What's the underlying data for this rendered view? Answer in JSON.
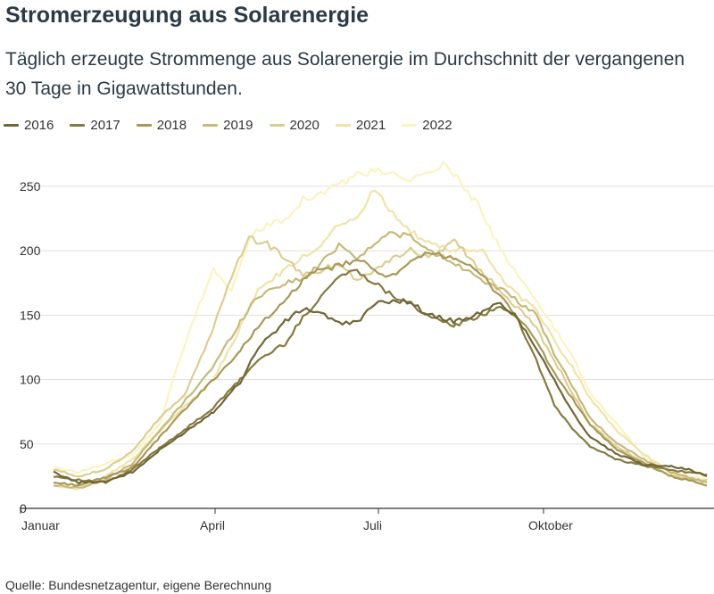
{
  "title": "Stromerzeugung aus Solarenergie",
  "subtitle": "Täglich erzeugte Strommenge aus Solarenergie im Durchschnitt der vergangenen 30 Tage in Gigawattstunden.",
  "source": "Quelle: Bundesnetzagentur, eigene Berechnung",
  "colors": {
    "2016": "#726636",
    "2017": "#857a41",
    "2018": "#a89958",
    "2019": "#c8b87a",
    "2020": "#ddcd93",
    "2021": "#efe3aa",
    "2022": "#fbf3c1"
  },
  "chart_data": {
    "type": "line",
    "title": "Stromerzeugung aus Solarenergie",
    "xlabel": "",
    "ylabel": "",
    "x_unit": "Tag des Jahres",
    "ylim": [
      0,
      270
    ],
    "yticks": [
      0,
      50,
      100,
      150,
      200,
      250
    ],
    "xticks": [
      {
        "day": 1,
        "label": "Januar"
      },
      {
        "day": 91,
        "label": "April"
      },
      {
        "day": 182,
        "label": "Juli"
      },
      {
        "day": 274,
        "label": "Oktober"
      }
    ],
    "grid": true,
    "legend_position": "top",
    "series": [
      {
        "name": "2016",
        "points": [
          [
            1,
            28
          ],
          [
            15,
            20
          ],
          [
            30,
            21
          ],
          [
            45,
            28
          ],
          [
            60,
            45
          ],
          [
            75,
            60
          ],
          [
            90,
            75
          ],
          [
            105,
            98
          ],
          [
            115,
            125
          ],
          [
            130,
            145
          ],
          [
            140,
            155
          ],
          [
            150,
            152
          ],
          [
            160,
            143
          ],
          [
            170,
            145
          ],
          [
            180,
            158
          ],
          [
            190,
            162
          ],
          [
            200,
            160
          ],
          [
            210,
            150
          ],
          [
            225,
            145
          ],
          [
            240,
            152
          ],
          [
            250,
            160
          ],
          [
            258,
            150
          ],
          [
            270,
            125
          ],
          [
            280,
            100
          ],
          [
            290,
            75
          ],
          [
            300,
            55
          ],
          [
            315,
            42
          ],
          [
            330,
            34
          ],
          [
            345,
            33
          ],
          [
            355,
            30
          ],
          [
            365,
            25
          ]
        ]
      },
      {
        "name": "2017",
        "points": [
          [
            1,
            25
          ],
          [
            15,
            22
          ],
          [
            30,
            20
          ],
          [
            45,
            30
          ],
          [
            60,
            47
          ],
          [
            75,
            62
          ],
          [
            90,
            78
          ],
          [
            105,
            100
          ],
          [
            115,
            115
          ],
          [
            130,
            128
          ],
          [
            140,
            148
          ],
          [
            150,
            165
          ],
          [
            160,
            180
          ],
          [
            170,
            185
          ],
          [
            180,
            175
          ],
          [
            190,
            165
          ],
          [
            200,
            160
          ],
          [
            210,
            148
          ],
          [
            225,
            142
          ],
          [
            240,
            150
          ],
          [
            250,
            158
          ],
          [
            260,
            145
          ],
          [
            270,
            115
          ],
          [
            280,
            80
          ],
          [
            290,
            62
          ],
          [
            300,
            48
          ],
          [
            315,
            38
          ],
          [
            330,
            33
          ],
          [
            345,
            30
          ],
          [
            360,
            27
          ],
          [
            365,
            26
          ]
        ]
      },
      {
        "name": "2018",
        "points": [
          [
            1,
            20
          ],
          [
            15,
            18
          ],
          [
            30,
            24
          ],
          [
            45,
            32
          ],
          [
            60,
            55
          ],
          [
            75,
            78
          ],
          [
            90,
            100
          ],
          [
            105,
            122
          ],
          [
            115,
            142
          ],
          [
            130,
            160
          ],
          [
            140,
            178
          ],
          [
            150,
            185
          ],
          [
            160,
            188
          ],
          [
            170,
            193
          ],
          [
            180,
            185
          ],
          [
            190,
            180
          ],
          [
            200,
            190
          ],
          [
            210,
            198
          ],
          [
            225,
            195
          ],
          [
            240,
            180
          ],
          [
            250,
            165
          ],
          [
            260,
            148
          ],
          [
            270,
            130
          ],
          [
            280,
            105
          ],
          [
            290,
            85
          ],
          [
            300,
            65
          ],
          [
            315,
            45
          ],
          [
            330,
            35
          ],
          [
            345,
            25
          ],
          [
            360,
            20
          ],
          [
            365,
            18
          ]
        ]
      },
      {
        "name": "2019",
        "points": [
          [
            1,
            18
          ],
          [
            15,
            16
          ],
          [
            30,
            22
          ],
          [
            45,
            35
          ],
          [
            60,
            60
          ],
          [
            75,
            85
          ],
          [
            90,
            110
          ],
          [
            105,
            145
          ],
          [
            115,
            165
          ],
          [
            130,
            175
          ],
          [
            140,
            178
          ],
          [
            150,
            190
          ],
          [
            160,
            205
          ],
          [
            170,
            195
          ],
          [
            180,
            205
          ],
          [
            190,
            215
          ],
          [
            200,
            210
          ],
          [
            210,
            200
          ],
          [
            225,
            190
          ],
          [
            240,
            178
          ],
          [
            250,
            170
          ],
          [
            260,
            160
          ],
          [
            270,
            150
          ],
          [
            280,
            120
          ],
          [
            290,
            95
          ],
          [
            300,
            70
          ],
          [
            315,
            50
          ],
          [
            330,
            38
          ],
          [
            345,
            28
          ],
          [
            360,
            22
          ],
          [
            365,
            20
          ]
        ]
      },
      {
        "name": "2020",
        "points": [
          [
            1,
            30
          ],
          [
            15,
            25
          ],
          [
            30,
            30
          ],
          [
            45,
            45
          ],
          [
            60,
            70
          ],
          [
            75,
            90
          ],
          [
            90,
            140
          ],
          [
            100,
            180
          ],
          [
            110,
            210
          ],
          [
            120,
            205
          ],
          [
            130,
            195
          ],
          [
            140,
            180
          ],
          [
            150,
            185
          ],
          [
            160,
            190
          ],
          [
            170,
            178
          ],
          [
            180,
            185
          ],
          [
            190,
            195
          ],
          [
            200,
            200
          ],
          [
            210,
            195
          ],
          [
            225,
            208
          ],
          [
            235,
            190
          ],
          [
            250,
            170
          ],
          [
            260,
            155
          ],
          [
            270,
            140
          ],
          [
            280,
            115
          ],
          [
            290,
            90
          ],
          [
            300,
            65
          ],
          [
            315,
            48
          ],
          [
            330,
            35
          ],
          [
            345,
            25
          ],
          [
            360,
            22
          ],
          [
            365,
            22
          ]
        ]
      },
      {
        "name": "2021",
        "points": [
          [
            1,
            17
          ],
          [
            15,
            15
          ],
          [
            30,
            25
          ],
          [
            45,
            38
          ],
          [
            60,
            60
          ],
          [
            75,
            80
          ],
          [
            90,
            100
          ],
          [
            105,
            140
          ],
          [
            115,
            170
          ],
          [
            130,
            185
          ],
          [
            140,
            195
          ],
          [
            150,
            205
          ],
          [
            160,
            222
          ],
          [
            170,
            225
          ],
          [
            180,
            248
          ],
          [
            190,
            230
          ],
          [
            200,
            215
          ],
          [
            210,
            205
          ],
          [
            225,
            200
          ],
          [
            240,
            200
          ],
          [
            250,
            180
          ],
          [
            260,
            165
          ],
          [
            270,
            155
          ],
          [
            280,
            130
          ],
          [
            290,
            110
          ],
          [
            300,
            85
          ],
          [
            315,
            60
          ],
          [
            330,
            42
          ],
          [
            345,
            28
          ],
          [
            360,
            20
          ],
          [
            365,
            18
          ]
        ]
      },
      {
        "name": "2022",
        "points": [
          [
            1,
            32
          ],
          [
            15,
            28
          ],
          [
            30,
            35
          ],
          [
            45,
            42
          ],
          [
            60,
            65
          ],
          [
            70,
            110
          ],
          [
            80,
            150
          ],
          [
            90,
            185
          ],
          [
            100,
            170
          ],
          [
            110,
            210
          ],
          [
            120,
            220
          ],
          [
            130,
            225
          ],
          [
            140,
            240
          ],
          [
            150,
            245
          ],
          [
            160,
            252
          ],
          [
            170,
            258
          ],
          [
            180,
            262
          ],
          [
            190,
            258
          ],
          [
            200,
            255
          ],
          [
            210,
            260
          ],
          [
            220,
            268
          ],
          [
            230,
            250
          ],
          [
            240,
            230
          ],
          [
            250,
            200
          ],
          [
            260,
            180
          ],
          [
            270,
            160
          ],
          [
            280,
            140
          ],
          [
            290,
            118
          ],
          [
            300,
            90
          ],
          [
            315,
            65
          ],
          [
            330,
            40
          ],
          [
            345,
            28
          ],
          [
            360,
            24
          ],
          [
            365,
            22
          ]
        ]
      }
    ]
  }
}
